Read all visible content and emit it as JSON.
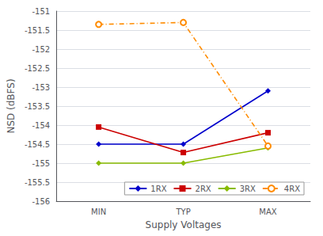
{
  "chart_data": {
    "type": "line",
    "categories": [
      "MIN",
      "TYP",
      "MAX"
    ],
    "x_label": "Supply Voltages",
    "y_label": "NSD (dBFS)",
    "series": [
      {
        "name": "1RX",
        "color": "#0000CC",
        "marker": "diamond",
        "line_style": "solid",
        "values": [
          -154.5,
          -154.5,
          -153.1
        ]
      },
      {
        "name": "2RX",
        "color": "#CC0000",
        "marker": "square",
        "line_style": "solid",
        "values": [
          -154.05,
          -154.72,
          -154.2
        ]
      },
      {
        "name": "3RX",
        "color": "#88BB00",
        "marker": "diamond",
        "line_style": "solid",
        "values": [
          -155.0,
          -155.0,
          -154.6
        ]
      },
      {
        "name": "4RX",
        "color": "#FF8C00",
        "marker": "open_circle",
        "line_style": "dashdot",
        "values": [
          -151.35,
          -151.3,
          -154.55
        ]
      }
    ],
    "ylim": [
      -156,
      -151
    ],
    "yticks": [
      -156,
      -155.5,
      -155,
      -154.5,
      -154,
      -153.5,
      -153,
      -152.5,
      -152,
      -151.5,
      -151
    ],
    "grid": true,
    "legend": "lower right"
  }
}
